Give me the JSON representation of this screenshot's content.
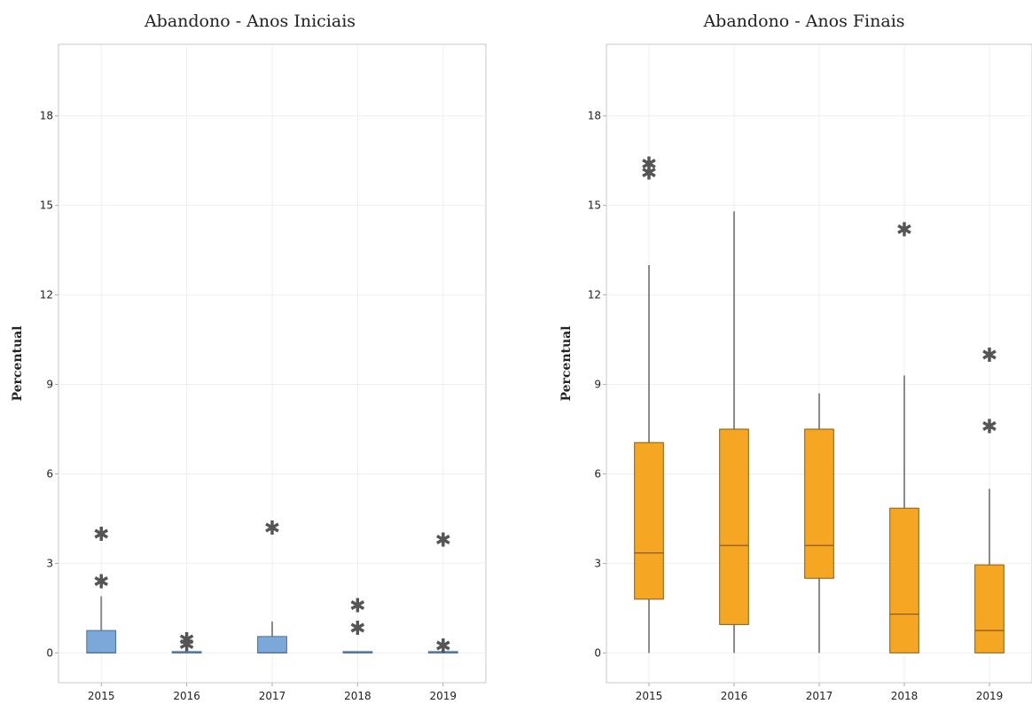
{
  "chart_data": [
    {
      "type": "boxplot",
      "title": "Abandono - Anos Iniciais",
      "ylabel": "Percentual",
      "xlabel": "",
      "categories": [
        "2015",
        "2016",
        "2017",
        "2018",
        "2019"
      ],
      "yticks": [
        0,
        3,
        6,
        9,
        12,
        15,
        18
      ],
      "ylim": [
        -1,
        20.4
      ],
      "grid": true,
      "color": "#7ba7d9",
      "box_stroke": "#4a6f9a",
      "boxes": [
        {
          "category": "2015",
          "min": 0,
          "q1": 0,
          "median": 0,
          "q3": 0.75,
          "max": 1.9,
          "outliers": [
            2.4,
            4.0
          ]
        },
        {
          "category": "2016",
          "min": 0,
          "q1": 0,
          "median": 0,
          "q3": 0,
          "max": 0,
          "outliers": [
            0.3,
            0.45
          ]
        },
        {
          "category": "2017",
          "min": 0,
          "q1": 0,
          "median": 0,
          "q3": 0.55,
          "max": 1.05,
          "outliers": [
            4.2
          ]
        },
        {
          "category": "2018",
          "min": 0,
          "q1": 0,
          "median": 0,
          "q3": 0,
          "max": 0,
          "outliers": [
            0.85,
            1.6
          ]
        },
        {
          "category": "2019",
          "min": 0,
          "q1": 0,
          "median": 0,
          "q3": 0,
          "max": 0,
          "outliers": [
            0.25,
            3.8
          ]
        }
      ]
    },
    {
      "type": "boxplot",
      "title": "Abandono - Anos Finais",
      "ylabel": "Percentual",
      "xlabel": "",
      "categories": [
        "2015",
        "2016",
        "2017",
        "2018",
        "2019"
      ],
      "yticks": [
        0,
        3,
        6,
        9,
        12,
        15,
        18
      ],
      "ylim": [
        -1,
        20.4
      ],
      "grid": true,
      "color": "#f5a623",
      "box_stroke": "#8a5a10",
      "boxes": [
        {
          "category": "2015",
          "min": 0,
          "q1": 1.8,
          "median": 3.35,
          "q3": 7.05,
          "max": 13.0,
          "outliers": [
            16.1,
            16.4
          ]
        },
        {
          "category": "2016",
          "min": 0,
          "q1": 0.95,
          "median": 3.6,
          "q3": 7.5,
          "max": 14.8,
          "outliers": []
        },
        {
          "category": "2017",
          "min": 0,
          "q1": 2.5,
          "median": 3.6,
          "q3": 7.5,
          "max": 8.7,
          "outliers": []
        },
        {
          "category": "2018",
          "min": 0,
          "q1": 0,
          "median": 1.3,
          "q3": 4.85,
          "max": 9.3,
          "outliers": [
            14.2
          ]
        },
        {
          "category": "2019",
          "min": 0,
          "q1": 0,
          "median": 0.75,
          "q3": 2.95,
          "max": 5.5,
          "outliers": [
            7.6,
            10.0
          ]
        }
      ]
    }
  ]
}
